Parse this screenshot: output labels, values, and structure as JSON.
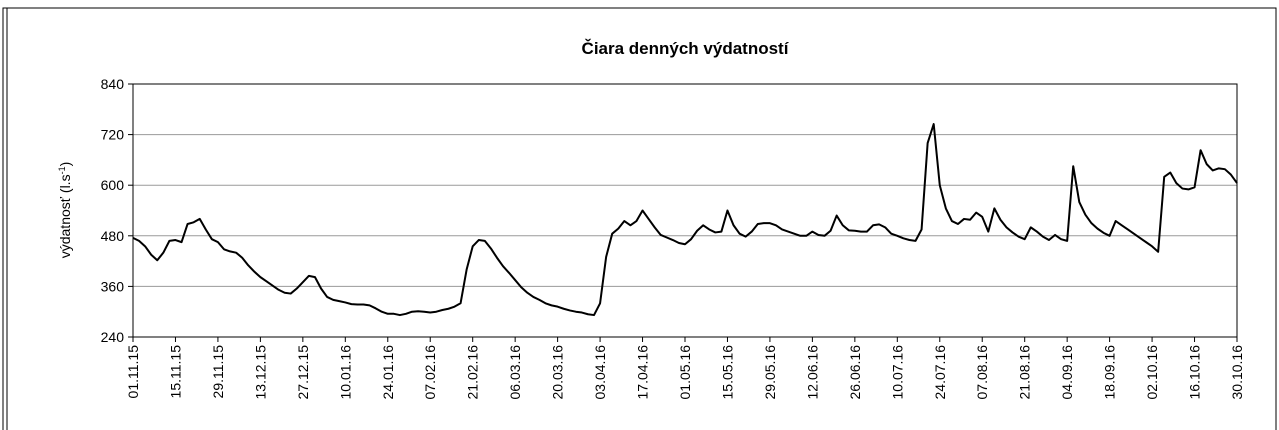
{
  "chart_data": {
    "type": "line",
    "title": "Čiara denných výdatností",
    "y_label": [
      "výdatnosť (l.s",
      "-1",
      ")"
    ],
    "ylim": [
      240,
      840
    ],
    "yticks": [
      240,
      360,
      480,
      600,
      720,
      840
    ],
    "grid": true,
    "categories": [
      "01.11.15",
      null,
      null,
      null,
      null,
      null,
      null,
      "15.11.15",
      null,
      null,
      null,
      null,
      null,
      null,
      "29.11.15",
      null,
      null,
      null,
      null,
      null,
      null,
      "13.12.15",
      null,
      null,
      null,
      null,
      null,
      null,
      "27.12.15",
      null,
      null,
      null,
      null,
      null,
      null,
      "10.01.16",
      null,
      null,
      null,
      null,
      null,
      null,
      "24.01.16",
      null,
      null,
      null,
      null,
      null,
      null,
      "07.02.16",
      null,
      null,
      null,
      null,
      null,
      null,
      "21.02.16",
      null,
      null,
      null,
      null,
      null,
      null,
      "06.03.16",
      null,
      null,
      null,
      null,
      null,
      null,
      "20.03.16",
      null,
      null,
      null,
      null,
      null,
      null,
      "03.04.16",
      null,
      null,
      null,
      null,
      null,
      null,
      "17.04.16",
      null,
      null,
      null,
      null,
      null,
      null,
      "01.05.16",
      null,
      null,
      null,
      null,
      null,
      null,
      "15.05.16",
      null,
      null,
      null,
      null,
      null,
      null,
      "29.05.16",
      null,
      null,
      null,
      null,
      null,
      null,
      "12.06.16",
      null,
      null,
      null,
      null,
      null,
      null,
      "26.06.16",
      null,
      null,
      null,
      null,
      null,
      null,
      "10.07.16",
      null,
      null,
      null,
      null,
      null,
      null,
      "24.07.16",
      null,
      null,
      null,
      null,
      null,
      null,
      "07.08.16",
      null,
      null,
      null,
      null,
      null,
      null,
      "21.08.16",
      null,
      null,
      null,
      null,
      null,
      null,
      "04.09.16",
      null,
      null,
      null,
      null,
      null,
      null,
      "18.09.16",
      null,
      null,
      null,
      null,
      null,
      null,
      "02.10.16",
      null,
      null,
      null,
      null,
      null,
      null,
      "16.10.16",
      null,
      null,
      null,
      null,
      null,
      null,
      "30.10.16"
    ],
    "series": [
      {
        "name": "výdatnosť",
        "color": "#000000",
        "values": [
          475,
          468,
          455,
          435,
          422,
          440,
          468,
          470,
          465,
          508,
          512,
          520,
          495,
          472,
          465,
          448,
          443,
          440,
          428,
          410,
          395,
          382,
          372,
          362,
          352,
          345,
          343,
          355,
          370,
          385,
          382,
          355,
          335,
          328,
          325,
          322,
          318,
          317,
          317,
          315,
          308,
          300,
          295,
          295,
          292,
          295,
          300,
          301,
          300,
          298,
          300,
          304,
          307,
          312,
          320,
          400,
          455,
          470,
          468,
          450,
          428,
          408,
          392,
          375,
          358,
          345,
          335,
          328,
          320,
          315,
          312,
          307,
          303,
          300,
          298,
          294,
          292,
          320,
          430,
          485,
          497,
          515,
          505,
          515,
          540,
          520,
          500,
          482,
          476,
          470,
          463,
          460,
          472,
          492,
          505,
          495,
          488,
          490,
          540,
          505,
          485,
          478,
          490,
          508,
          510,
          510,
          505,
          495,
          490,
          485,
          480,
          480,
          490,
          482,
          480,
          492,
          528,
          505,
          493,
          492,
          490,
          490,
          505,
          507,
          500,
          485,
          480,
          474,
          470,
          468,
          495,
          700,
          745,
          600,
          545,
          515,
          508,
          520,
          518,
          535,
          525,
          490,
          545,
          518,
          500,
          488,
          478,
          472,
          500,
          490,
          478,
          470,
          482,
          472,
          468,
          645,
          560,
          530,
          510,
          497,
          487,
          480,
          515,
          505,
          495,
          485,
          475,
          465,
          455,
          442,
          620,
          630,
          605,
          592,
          590,
          595,
          683,
          650,
          635,
          640,
          638,
          625,
          605
        ]
      }
    ]
  }
}
